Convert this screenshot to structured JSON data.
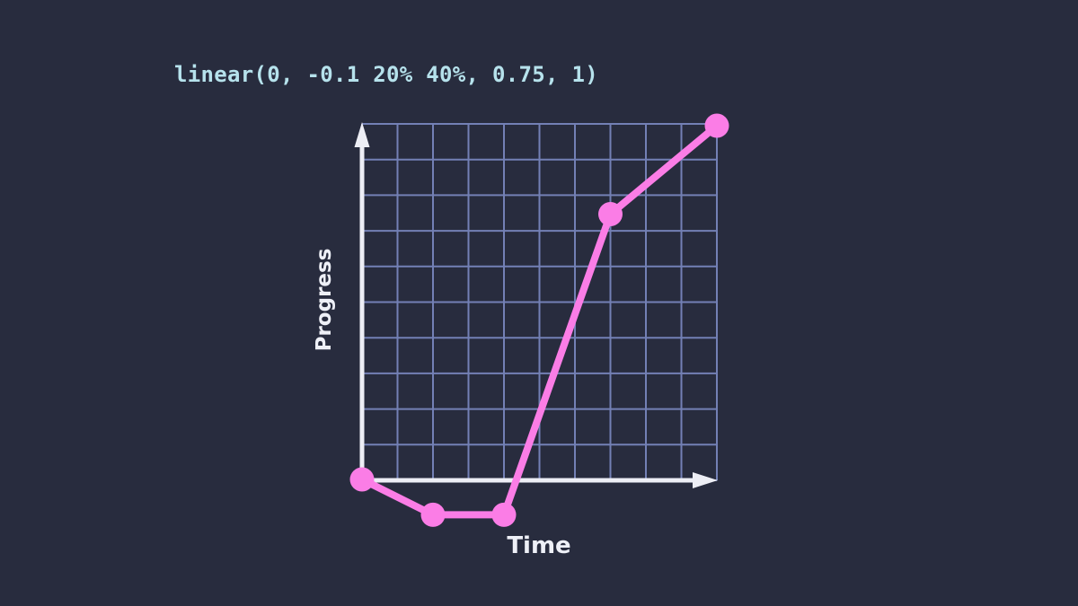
{
  "header": {
    "easing_expression": "linear(0, -0.1 20% 40%, 0.75, 1)"
  },
  "chart_data": {
    "type": "line",
    "title": "linear(0, -0.1 20% 40%, 0.75, 1)",
    "xlabel": "Time",
    "ylabel": "Progress",
    "x": [
      0,
      0.2,
      0.4,
      0.7,
      1
    ],
    "y": [
      0,
      -0.1,
      -0.1,
      0.75,
      1
    ],
    "xlim": [
      0,
      1
    ],
    "ylim": [
      0,
      1
    ],
    "grid": true,
    "grid_divisions_x": 10,
    "grid_divisions_y": 10,
    "legend": false,
    "markers": true,
    "line_width": 8,
    "marker_radius": 13.5,
    "colors": {
      "background": "#282c3e",
      "line": "#fb7de6",
      "marker": "#fb7de6",
      "grid": "#7380b5",
      "axis": "#edeef5",
      "title_text": "#b6e2ec",
      "axis_label_text": "#eef0f7"
    }
  }
}
